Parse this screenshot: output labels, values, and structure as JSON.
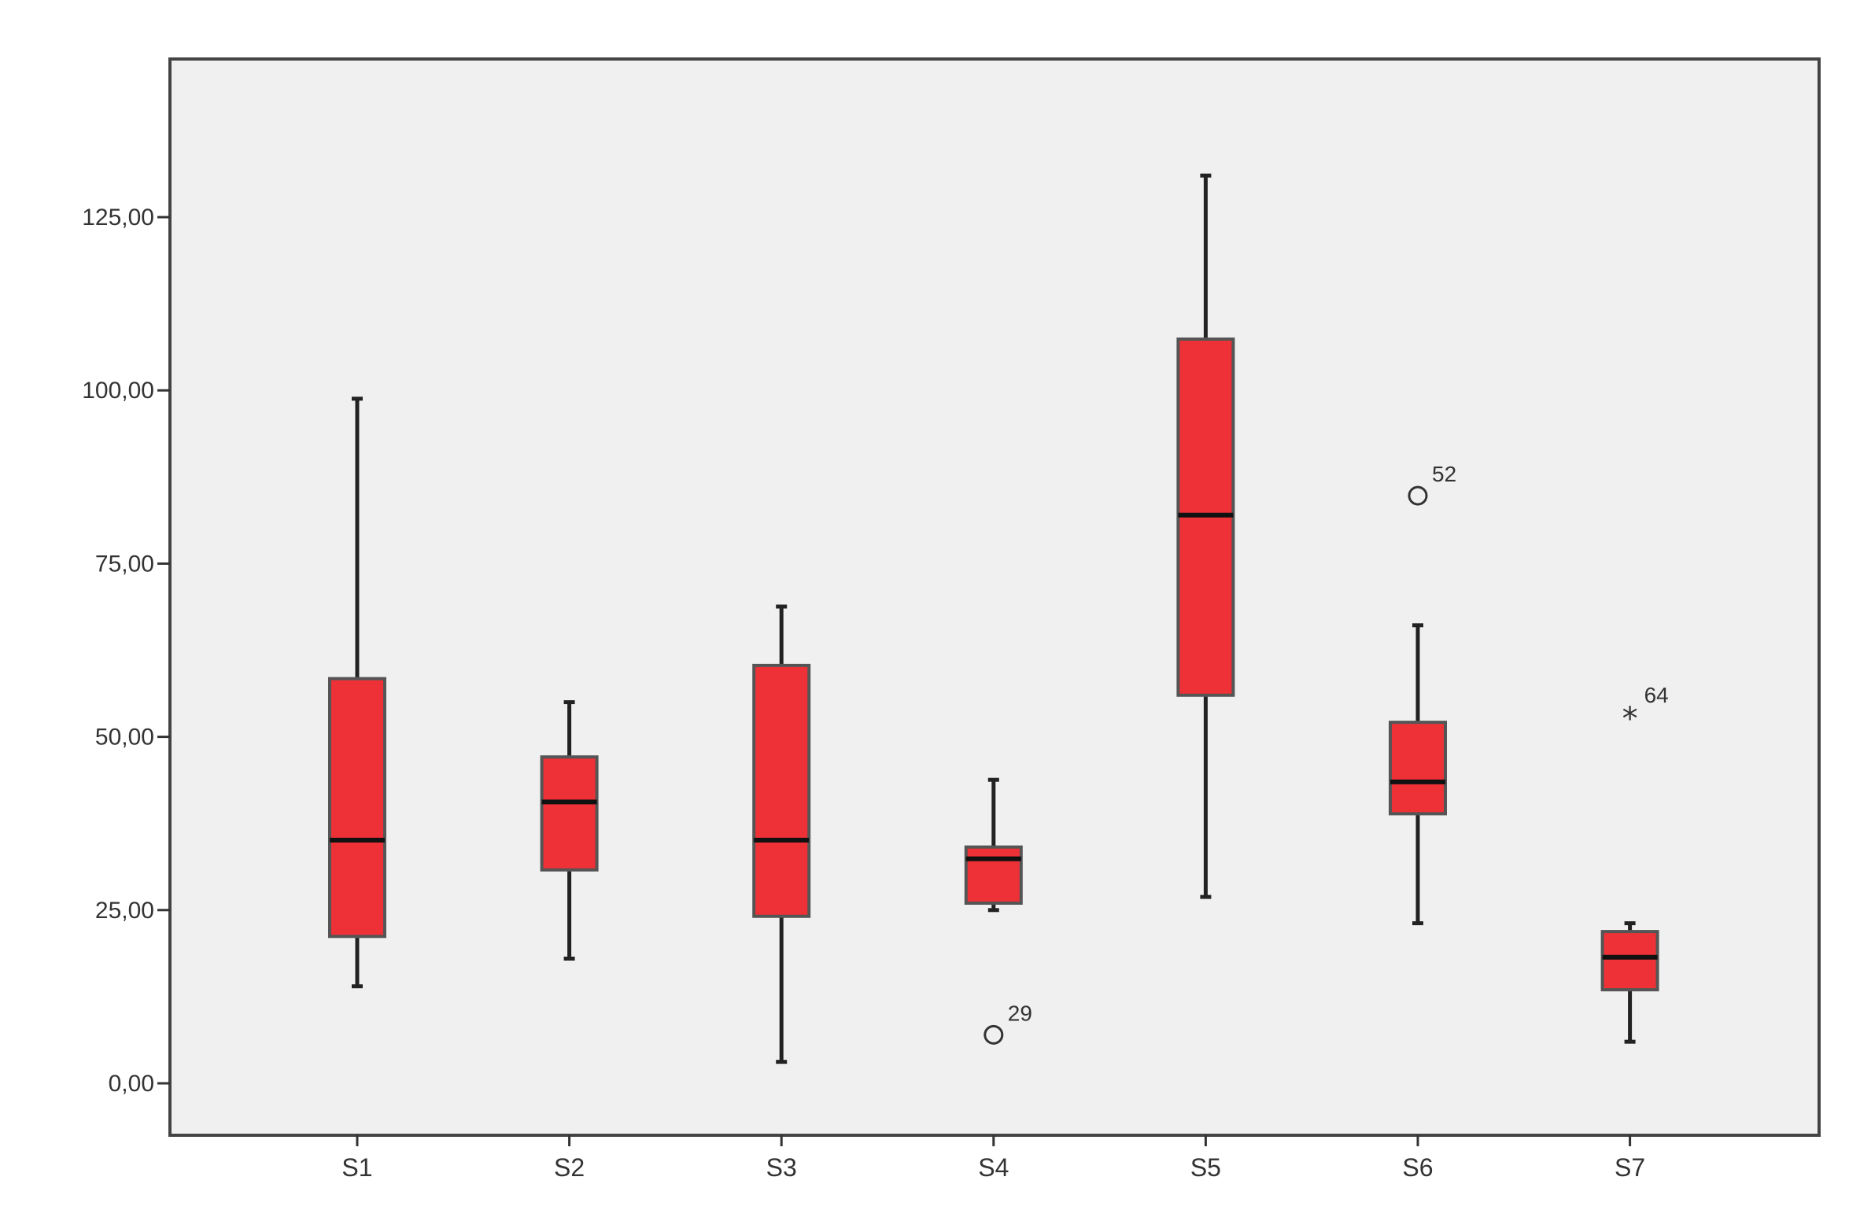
{
  "chart_data": {
    "type": "boxplot",
    "title": "",
    "xlabel": "",
    "ylabel": "",
    "ylim": [
      -7,
      148
    ],
    "yticks": [
      0,
      25,
      50,
      75,
      100,
      125
    ],
    "ytick_labels": [
      "0,00",
      "25,00",
      "50,00",
      "75,00",
      "100,00",
      "125,00"
    ],
    "grid": false,
    "colors": {
      "box_fill": "#ee3137",
      "box_stroke": "#555555",
      "median": "#111111",
      "plot_bg": "#f0f0f0",
      "frame": "#444444"
    },
    "categories": [
      "S1",
      "S2",
      "S3",
      "S4",
      "S5",
      "S6",
      "S7"
    ],
    "boxes": [
      {
        "name": "S1",
        "min": 14.0,
        "q1": 21.2,
        "median": 35.1,
        "q3": 58.4,
        "max": 98.8,
        "outliers": []
      },
      {
        "name": "S2",
        "min": 18.0,
        "q1": 30.8,
        "median": 40.6,
        "q3": 47.1,
        "max": 55.0,
        "outliers": []
      },
      {
        "name": "S3",
        "min": 3.1,
        "q1": 24.1,
        "median": 35.1,
        "q3": 60.3,
        "max": 68.8,
        "outliers": []
      },
      {
        "name": "S4",
        "min": 25.0,
        "q1": 26.0,
        "median": 32.4,
        "q3": 34.1,
        "max": 43.8,
        "outliers": [
          {
            "value": 7.0,
            "label": "29",
            "marker": "circle"
          }
        ]
      },
      {
        "name": "S5",
        "min": 26.9,
        "q1": 56.0,
        "median": 82.0,
        "q3": 107.4,
        "max": 131.0,
        "outliers": []
      },
      {
        "name": "S6",
        "min": 23.1,
        "q1": 38.9,
        "median": 43.5,
        "q3": 52.1,
        "max": 66.1,
        "outliers": [
          {
            "value": 84.8,
            "label": "52",
            "marker": "circle"
          }
        ]
      },
      {
        "name": "S7",
        "min": 6.0,
        "q1": 13.5,
        "median": 18.2,
        "q3": 21.9,
        "max": 23.1,
        "outliers": [
          {
            "value": 52.9,
            "label": "64",
            "marker": "star"
          }
        ]
      }
    ]
  }
}
